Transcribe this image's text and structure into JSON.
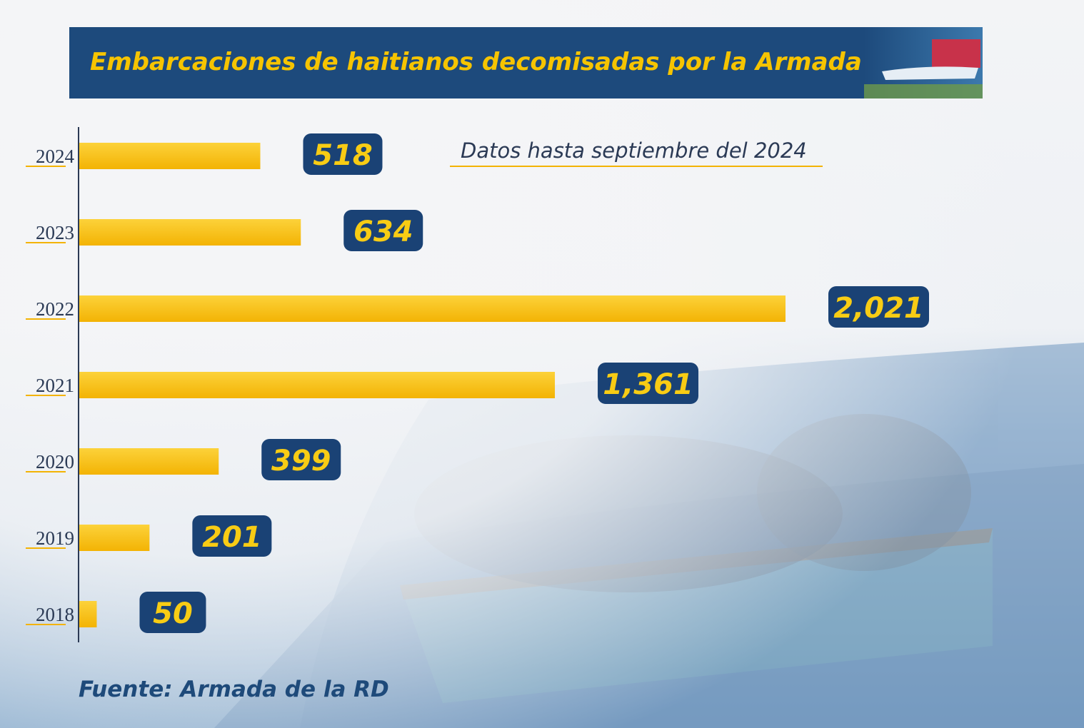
{
  "title": "Embarcaciones de haitianos decomisadas por la Armada",
  "note": "Datos hasta septiembre del 2024",
  "source": "Fuente: Armada de la RD",
  "colors": {
    "banner": "#1d4a7c",
    "title_text": "#f6c400",
    "bar": "#f7bb0d",
    "badge": "#1a4275",
    "badge_text": "#f8cc14",
    "text_dark": "#2b3a55",
    "source_text": "#1e4a7a"
  },
  "chart_data": {
    "type": "bar",
    "orientation": "horizontal",
    "title": "Embarcaciones de haitianos decomisadas por la Armada",
    "categories": [
      "2024",
      "2023",
      "2022",
      "2021",
      "2020",
      "2019",
      "2018"
    ],
    "values": [
      518,
      634,
      2021,
      1361,
      399,
      201,
      50
    ],
    "value_labels": [
      "518",
      "634",
      "2,021",
      "1,361",
      "399",
      "201",
      "50"
    ],
    "xlim": [
      0,
      2021
    ],
    "grid": false,
    "legend": "none"
  }
}
